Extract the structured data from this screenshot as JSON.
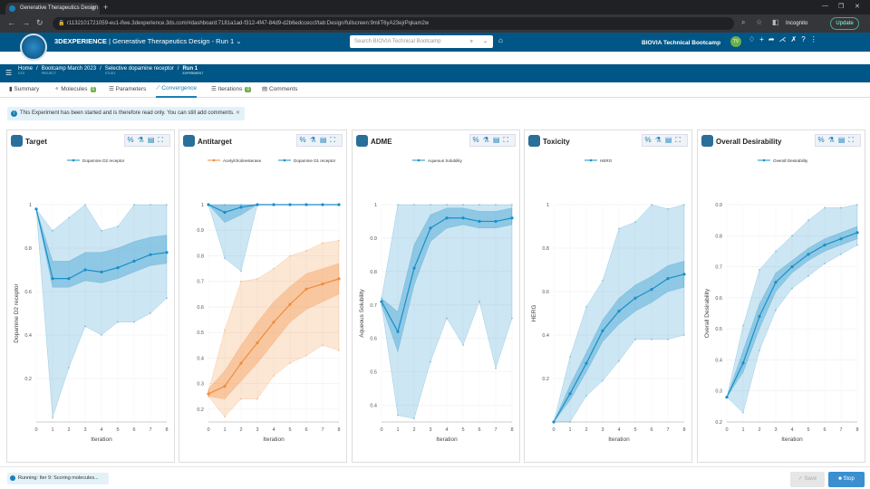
{
  "browser": {
    "tab_title": "Generative Therapeutics Design",
    "url": "r1132101721059-eu1-ifwe.3dexperience.3ds.com/#dashboard:7181a1ad-f312-4f47-84d9-d2b6edcceccf/tab:Design/fullscreen:9mliT6yA23ejrPqkam2w",
    "incognito": "Incognito",
    "update": "Update"
  },
  "app": {
    "brand": "3DEXPERIENCE",
    "brand_sep": "|",
    "title": "Generative Therapeutics Design - Run 1",
    "search_placeholder": "Search BIOVIA Technical Bootcamp",
    "platform": "BIOVIA Technical Bootcamp",
    "user_initials": "TV"
  },
  "breadcrumb": [
    {
      "label": "Home",
      "sub": "DTD"
    },
    {
      "label": "Bootcamp March 2023",
      "sub": "PROJECT"
    },
    {
      "label": "Selective dopamine receptor",
      "sub": "STUDY"
    },
    {
      "label": "Run 1",
      "sub": "EXPERIMENT"
    }
  ],
  "tabs": [
    {
      "label": "Summary"
    },
    {
      "label": "Molecules",
      "badge": "0"
    },
    {
      "label": "Parameters"
    },
    {
      "label": "Convergence"
    },
    {
      "label": "Iterations",
      "badge": "0"
    },
    {
      "label": "Comments"
    }
  ],
  "notice": "This Experiment has been started and is therefore read only. You can still add comments.",
  "status": "Running: Iter 9: Scoring molecules...",
  "buttons": {
    "save": "Save",
    "stop": "Stop"
  },
  "colors": {
    "blue": "#1a8fc9",
    "orange": "#f08c3c"
  },
  "chart_data": [
    {
      "type": "line",
      "title": "Target",
      "xlabel": "Iteration",
      "ylabel": "Dopamine D2 receptor",
      "x": [
        0,
        1,
        2,
        3,
        4,
        5,
        6,
        7,
        8
      ],
      "ylim": [
        0,
        1
      ],
      "yticks": [
        0.2,
        0.4,
        0.6,
        0.8,
        1
      ],
      "series": [
        {
          "name": "Dopamine D2 receptor",
          "color": "#1a8fc9",
          "values": [
            0.98,
            0.66,
            0.66,
            0.7,
            0.69,
            0.71,
            0.74,
            0.77,
            0.78
          ],
          "p25": [
            0.98,
            0.62,
            0.62,
            0.65,
            0.64,
            0.66,
            0.69,
            0.72,
            0.73
          ],
          "p75": [
            0.98,
            0.74,
            0.74,
            0.78,
            0.78,
            0.8,
            0.83,
            0.85,
            0.86
          ],
          "min": [
            0.98,
            0.02,
            0.25,
            0.44,
            0.4,
            0.46,
            0.46,
            0.5,
            0.57
          ],
          "max": [
            0.98,
            0.88,
            0.94,
            1.0,
            0.88,
            0.9,
            1.0,
            1.0,
            1.0
          ]
        }
      ]
    },
    {
      "type": "line",
      "title": "Antitarget",
      "xlabel": "Iteration",
      "ylabel": "",
      "x": [
        0,
        1,
        2,
        3,
        4,
        5,
        6,
        7,
        8
      ],
      "ylim": [
        0.15,
        1
      ],
      "yticks": [
        0.2,
        0.3,
        0.4,
        0.5,
        0.6,
        0.7,
        0.8,
        0.9,
        1
      ],
      "series": [
        {
          "name": "Acetylcholinesterase",
          "color": "#f08c3c",
          "values": [
            0.26,
            0.29,
            0.38,
            0.46,
            0.54,
            0.61,
            0.67,
            0.69,
            0.71
          ],
          "p25": [
            0.25,
            0.24,
            0.31,
            0.38,
            0.46,
            0.54,
            0.59,
            0.62,
            0.65
          ],
          "p75": [
            0.28,
            0.35,
            0.45,
            0.54,
            0.62,
            0.68,
            0.73,
            0.75,
            0.77
          ],
          "min": [
            0.25,
            0.17,
            0.24,
            0.24,
            0.33,
            0.38,
            0.41,
            0.45,
            0.43
          ],
          "max": [
            0.27,
            0.51,
            0.7,
            0.71,
            0.75,
            0.8,
            0.82,
            0.85,
            0.86
          ]
        },
        {
          "name": "Dopamine D1 receptor",
          "color": "#1a8fc9",
          "values": [
            1.0,
            0.97,
            0.99,
            1.0,
            1.0,
            1.0,
            1.0,
            1.0,
            1.0
          ],
          "p25": [
            1.0,
            0.93,
            0.96,
            1.0,
            1.0,
            1.0,
            1.0,
            1.0,
            1.0
          ],
          "p75": [
            1.0,
            1.0,
            1.0,
            1.0,
            1.0,
            1.0,
            1.0,
            1.0,
            1.0
          ],
          "min": [
            1.0,
            0.79,
            0.74,
            1.0,
            1.0,
            1.0,
            1.0,
            1.0,
            1.0
          ],
          "max": [
            1.0,
            1.0,
            1.0,
            1.0,
            1.0,
            1.0,
            1.0,
            1.0,
            1.0
          ]
        }
      ]
    },
    {
      "type": "line",
      "title": "ADME",
      "xlabel": "Iteration",
      "ylabel": "Aqueous Solubility",
      "x": [
        0,
        1,
        2,
        3,
        4,
        5,
        6,
        7,
        8
      ],
      "ylim": [
        0.35,
        1
      ],
      "yticks": [
        0.4,
        0.5,
        0.6,
        0.7,
        0.8,
        0.9,
        1
      ],
      "series": [
        {
          "name": "Aqueous Solubility",
          "color": "#1a8fc9",
          "values": [
            0.71,
            0.62,
            0.81,
            0.93,
            0.96,
            0.96,
            0.95,
            0.95,
            0.96
          ],
          "p25": [
            0.7,
            0.56,
            0.76,
            0.89,
            0.93,
            0.94,
            0.93,
            0.93,
            0.94
          ],
          "p75": [
            0.72,
            0.68,
            0.88,
            0.97,
            0.99,
            0.99,
            0.98,
            0.98,
            0.99
          ],
          "min": [
            0.7,
            0.37,
            0.36,
            0.53,
            0.66,
            0.58,
            0.71,
            0.51,
            0.66
          ],
          "max": [
            0.72,
            1.0,
            1.0,
            1.0,
            1.0,
            1.0,
            1.0,
            1.0,
            1.0
          ]
        }
      ]
    },
    {
      "type": "line",
      "title": "Toxicity",
      "xlabel": "Iteration",
      "ylabel": "HERG",
      "x": [
        0,
        1,
        2,
        3,
        4,
        5,
        6,
        7,
        8
      ],
      "ylim": [
        0,
        1
      ],
      "yticks": [
        0.2,
        0.4,
        0.6,
        0.8,
        1
      ],
      "series": [
        {
          "name": "HERG",
          "color": "#1a8fc9",
          "values": [
            0.0,
            0.13,
            0.27,
            0.42,
            0.51,
            0.57,
            0.61,
            0.66,
            0.68
          ],
          "p25": [
            0.0,
            0.1,
            0.23,
            0.37,
            0.45,
            0.51,
            0.55,
            0.6,
            0.62
          ],
          "p75": [
            0.0,
            0.17,
            0.32,
            0.47,
            0.57,
            0.63,
            0.67,
            0.72,
            0.74
          ],
          "min": [
            0.0,
            0.0,
            0.12,
            0.19,
            0.28,
            0.38,
            0.38,
            0.38,
            0.4
          ],
          "max": [
            0.0,
            0.3,
            0.53,
            0.65,
            0.89,
            0.92,
            1.0,
            0.98,
            1.0
          ]
        }
      ]
    },
    {
      "type": "line",
      "title": "Overall Desirability",
      "xlabel": "Iteration",
      "ylabel": "Overall Desirability",
      "x": [
        0,
        1,
        2,
        3,
        4,
        5,
        6,
        7,
        8
      ],
      "ylim": [
        0.2,
        0.9
      ],
      "yticks": [
        0.2,
        0.3,
        0.4,
        0.5,
        0.6,
        0.7,
        0.8,
        0.9
      ],
      "series": [
        {
          "name": "Overall Desirability",
          "color": "#1a8fc9",
          "values": [
            0.28,
            0.39,
            0.54,
            0.65,
            0.7,
            0.74,
            0.77,
            0.79,
            0.81
          ],
          "p25": [
            0.28,
            0.36,
            0.5,
            0.62,
            0.68,
            0.72,
            0.75,
            0.77,
            0.79
          ],
          "p75": [
            0.28,
            0.43,
            0.58,
            0.68,
            0.72,
            0.76,
            0.79,
            0.81,
            0.83
          ],
          "min": [
            0.28,
            0.23,
            0.43,
            0.56,
            0.63,
            0.67,
            0.71,
            0.74,
            0.77
          ],
          "max": [
            0.28,
            0.51,
            0.69,
            0.75,
            0.8,
            0.85,
            0.89,
            0.89,
            0.9
          ]
        }
      ]
    }
  ]
}
